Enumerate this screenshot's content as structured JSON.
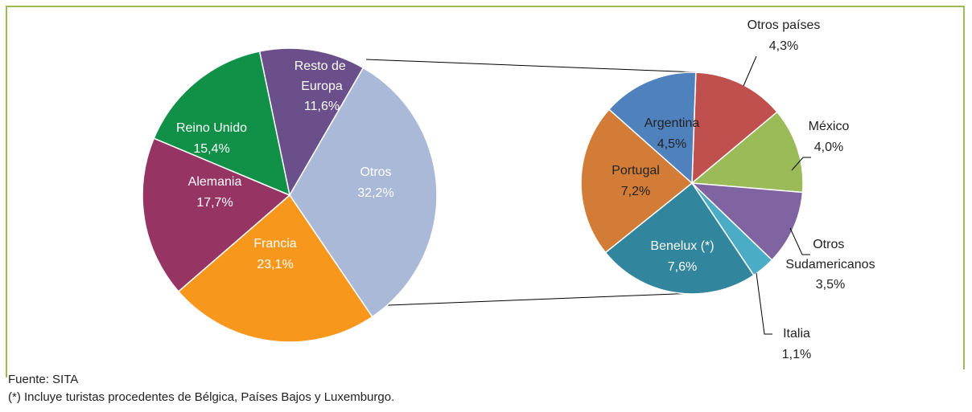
{
  "chart_data": [
    {
      "type": "pie",
      "categories": [
        "Resto de Europa",
        "Otros",
        "Francia",
        "Alemania",
        "Reino Unido"
      ],
      "values": [
        11.6,
        32.2,
        23.1,
        17.7,
        15.4
      ],
      "value_labels": [
        "11,6%",
        "32,2%",
        "23,1%",
        "17,7%",
        "15,4%"
      ],
      "colors": [
        "#6a4f8a",
        "#aab9d8",
        "#f7981d",
        "#963463",
        "#109147"
      ]
    },
    {
      "type": "pie",
      "categories": [
        "Otros países",
        "México",
        "Otros Sudamericanos",
        "Italia",
        "Benelux (*)",
        "Portugal",
        "Argentina"
      ],
      "values": [
        4.3,
        4.0,
        3.5,
        1.1,
        7.6,
        7.2,
        4.5
      ],
      "value_labels": [
        "4,3%",
        "4,0%",
        "3,5%",
        "1,1%",
        "7,6%",
        "7,2%",
        "4,5%"
      ],
      "colors": [
        "#c0504d",
        "#9bbb59",
        "#8064a2",
        "#4bacc6",
        "#31859c",
        "#d27c37",
        "#4f81bd"
      ]
    }
  ],
  "notes": [
    "Fuente: SITA",
    "(*) Incluye turistas procedentes de Bélgica, Países Bajos y Luxemburgo."
  ]
}
